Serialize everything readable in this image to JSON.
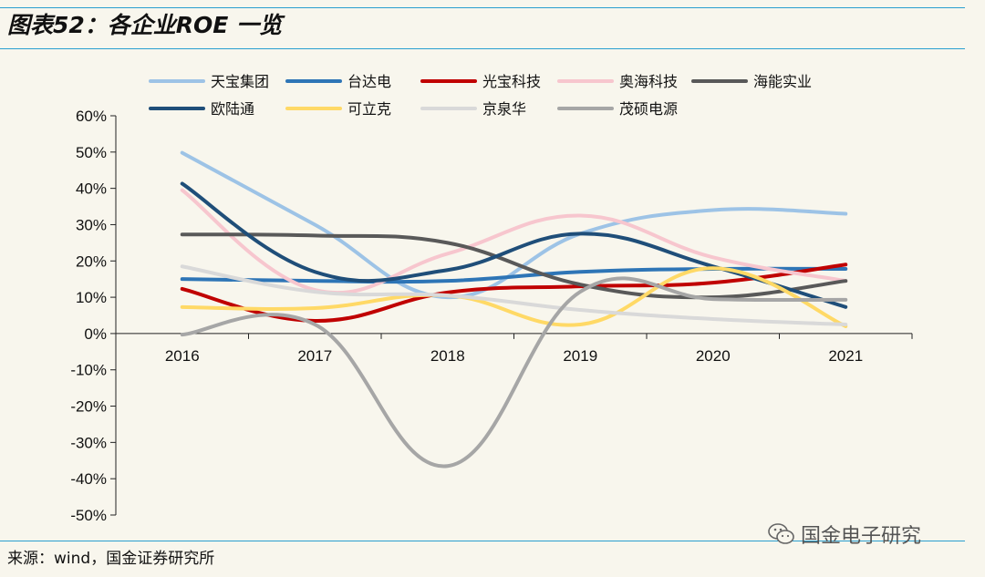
{
  "header": {
    "title": "图表52：各企业ROE 一览"
  },
  "footer": {
    "source": "来源：wind，国金证券研究所",
    "watermark": "国金电子研究"
  },
  "chart_data": {
    "type": "line",
    "title": "图表52：各企业ROE 一览",
    "xlabel": "",
    "ylabel": "",
    "categories": [
      "2016",
      "2017",
      "2018",
      "2019",
      "2020",
      "2021"
    ],
    "ylim": [
      -50,
      60
    ],
    "yticks": [
      60,
      50,
      40,
      30,
      20,
      10,
      0,
      -10,
      -20,
      -30,
      -40,
      -50
    ],
    "ytick_labels": [
      "60%",
      "50%",
      "40%",
      "30%",
      "20%",
      "10%",
      "0%",
      "-10%",
      "-20%",
      "-30%",
      "-40%",
      "-50%"
    ],
    "legend_position": "top",
    "grid": false,
    "series": [
      {
        "name": "天宝集团",
        "color": "#9dc3e6",
        "values": [
          49.8,
          30.0,
          10.0,
          27.5,
          34.0,
          33.0
        ]
      },
      {
        "name": "台达电",
        "color": "#2e75b6",
        "values": [
          15.0,
          14.5,
          14.5,
          17.0,
          17.8,
          17.8
        ]
      },
      {
        "name": "光宝科技",
        "color": "#c00000",
        "values": [
          12.3,
          3.5,
          11.3,
          13.0,
          14.0,
          19.0
        ]
      },
      {
        "name": "奥海科技",
        "color": "#f7c6ce",
        "values": [
          39.5,
          12.0,
          22.0,
          32.5,
          21.0,
          14.5
        ]
      },
      {
        "name": "海能实业",
        "color": "#595959",
        "values": [
          27.3,
          27.0,
          25.0,
          13.5,
          10.0,
          14.5
        ]
      },
      {
        "name": "欧陆通",
        "color": "#1f4e79",
        "values": [
          41.3,
          17.0,
          17.5,
          27.5,
          18.5,
          7.3
        ]
      },
      {
        "name": "可立克",
        "color": "#ffd966",
        "values": [
          7.3,
          7.0,
          10.5,
          2.5,
          18.0,
          2.0
        ]
      },
      {
        "name": "京泉华",
        "color": "#d9d9d9",
        "values": [
          18.5,
          11.5,
          10.5,
          6.5,
          4.0,
          2.5
        ]
      },
      {
        "name": "茂硕电源",
        "color": "#a6a6a6",
        "values": [
          -0.3,
          2.5,
          -36.5,
          11.5,
          9.5,
          9.3
        ]
      }
    ]
  }
}
